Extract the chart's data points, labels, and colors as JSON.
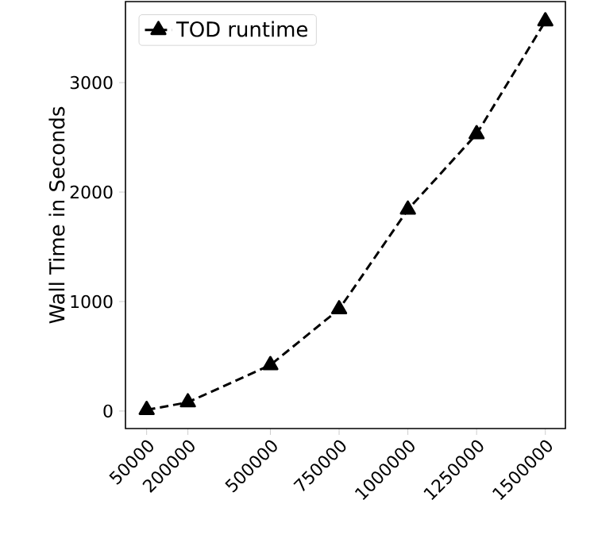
{
  "chart_data": {
    "type": "line",
    "ylabel": "Wall Time in Seconds",
    "x": [
      50000,
      200000,
      500000,
      750000,
      1000000,
      1250000,
      1500000
    ],
    "series": [
      {
        "name": "TOD runtime",
        "color": "#000000",
        "values": [
          10,
          80,
          420,
          930,
          1840,
          2530,
          3560
        ]
      }
    ],
    "xlim": [
      -27000,
      1573000
    ],
    "ylim": [
      -160,
      3740
    ],
    "xticks": [
      50000,
      200000,
      500000,
      750000,
      1000000,
      1250000,
      1500000
    ],
    "yticks": [
      0,
      1000,
      2000,
      3000
    ],
    "marker": "triangle",
    "line_style": "dashed",
    "legend": "top left",
    "grid": false
  }
}
